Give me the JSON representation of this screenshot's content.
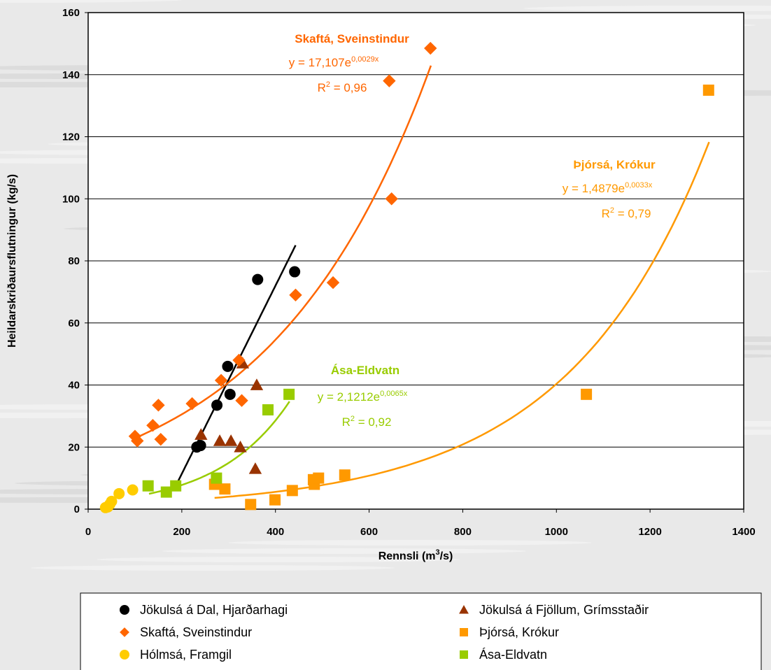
{
  "chart_data": {
    "type": "scatter",
    "xlabel": "Rennsli (m",
    "xlabel_sup": "3",
    "xlabel_end": "/s)",
    "ylabel": "Heildarskriðaursflutningur (kg/s)",
    "xlim": [
      0,
      1400
    ],
    "ylim": [
      0,
      160
    ],
    "xticks": [
      "0",
      "200",
      "400",
      "600",
      "800",
      "1000",
      "1200",
      "1400"
    ],
    "yticks": [
      "0",
      "20",
      "40",
      "60",
      "80",
      "100",
      "120",
      "140",
      "160"
    ],
    "grid": "horizontal",
    "legend_position": "bottom",
    "series": [
      {
        "name": "Jökulsá á Dal, Hjarðarhagi",
        "color": "#000000",
        "marker": "circle",
        "points": [
          [
            232,
            20
          ],
          [
            240,
            20.5
          ],
          [
            275,
            33.5
          ],
          [
            298,
            46
          ],
          [
            303,
            37
          ],
          [
            362,
            74
          ],
          [
            441,
            76.5
          ]
        ],
        "trend": {
          "type": "linear",
          "slope": 0.303,
          "intercept": -49.2,
          "x_range": [
            185,
            443
          ]
        }
      },
      {
        "name": "Jökulsá á Fjöllum, Grímsstaðir",
        "color": "#993300",
        "marker": "triangle",
        "points": [
          [
            241,
            24
          ],
          [
            281,
            22
          ],
          [
            305,
            22
          ],
          [
            325,
            20
          ],
          [
            330,
            47
          ],
          [
            360,
            40
          ],
          [
            357,
            13
          ]
        ]
      },
      {
        "name": "Skaftá, Sveinstindur",
        "color": "#FF6600",
        "marker": "diamond",
        "points": [
          [
            100,
            23.5
          ],
          [
            105,
            22
          ],
          [
            138,
            27
          ],
          [
            150,
            33.5
          ],
          [
            155,
            22.5
          ],
          [
            222,
            34
          ],
          [
            284,
            41.5
          ],
          [
            322,
            48
          ],
          [
            328,
            35
          ],
          [
            443,
            69
          ],
          [
            523,
            73
          ],
          [
            643,
            138
          ],
          [
            648,
            100
          ],
          [
            731,
            148.5
          ]
        ],
        "trend": {
          "type": "exponential",
          "a": 17.107,
          "b": 0.0029,
          "x_range": [
            100,
            732
          ]
        },
        "equation": {
          "title": "Skaftá, Sveinstindur",
          "eq_main": "y = 17,107e",
          "eq_exp": "0,0029x",
          "r2_pre": "R",
          "r2_sup": "2",
          "r2_post": " = 0,96"
        }
      },
      {
        "name": "Þjórsá, Krókur",
        "color": "#FF9900",
        "marker": "square",
        "points": [
          [
            270,
            8
          ],
          [
            292,
            6.5
          ],
          [
            347,
            1.5
          ],
          [
            399,
            3
          ],
          [
            436,
            6
          ],
          [
            481,
            9.5
          ],
          [
            483,
            8
          ],
          [
            492,
            10
          ],
          [
            548,
            11
          ],
          [
            1064,
            37
          ],
          [
            1325,
            135
          ]
        ],
        "trend": {
          "type": "exponential",
          "a": 1.4879,
          "b": 0.0033,
          "x_range": [
            270,
            1326
          ]
        },
        "equation": {
          "title": "Þjórsá, Krókur",
          "eq_main": "y = 1,4879e",
          "eq_exp": "0,0033x",
          "r2_pre": "R",
          "r2_sup": "2",
          "r2_post": " = 0,79"
        }
      },
      {
        "name": "Hólmsá, Framgil",
        "color": "#FFCC00",
        "marker": "circle",
        "points": [
          [
            37,
            0.5
          ],
          [
            42,
            0.7
          ],
          [
            46,
            1.5
          ],
          [
            50,
            2.5
          ],
          [
            66,
            5
          ],
          [
            95,
            6.2
          ]
        ]
      },
      {
        "name": "Ása-Eldvatn",
        "color": "#99CC00",
        "marker": "square",
        "points": [
          [
            128,
            7.5
          ],
          [
            167,
            5.5
          ],
          [
            187,
            7.5
          ],
          [
            274,
            10
          ],
          [
            384,
            32
          ],
          [
            429,
            37
          ]
        ],
        "trend": {
          "type": "exponential",
          "a": 2.1212,
          "b": 0.0065,
          "x_range": [
            130,
            430
          ]
        },
        "equation": {
          "title": "Ása-Eldvatn",
          "eq_main": "y = 2,1212e",
          "eq_exp": "0,0065x",
          "r2_pre": "R",
          "r2_sup": "2",
          "r2_post": " = 0,92"
        }
      }
    ]
  }
}
